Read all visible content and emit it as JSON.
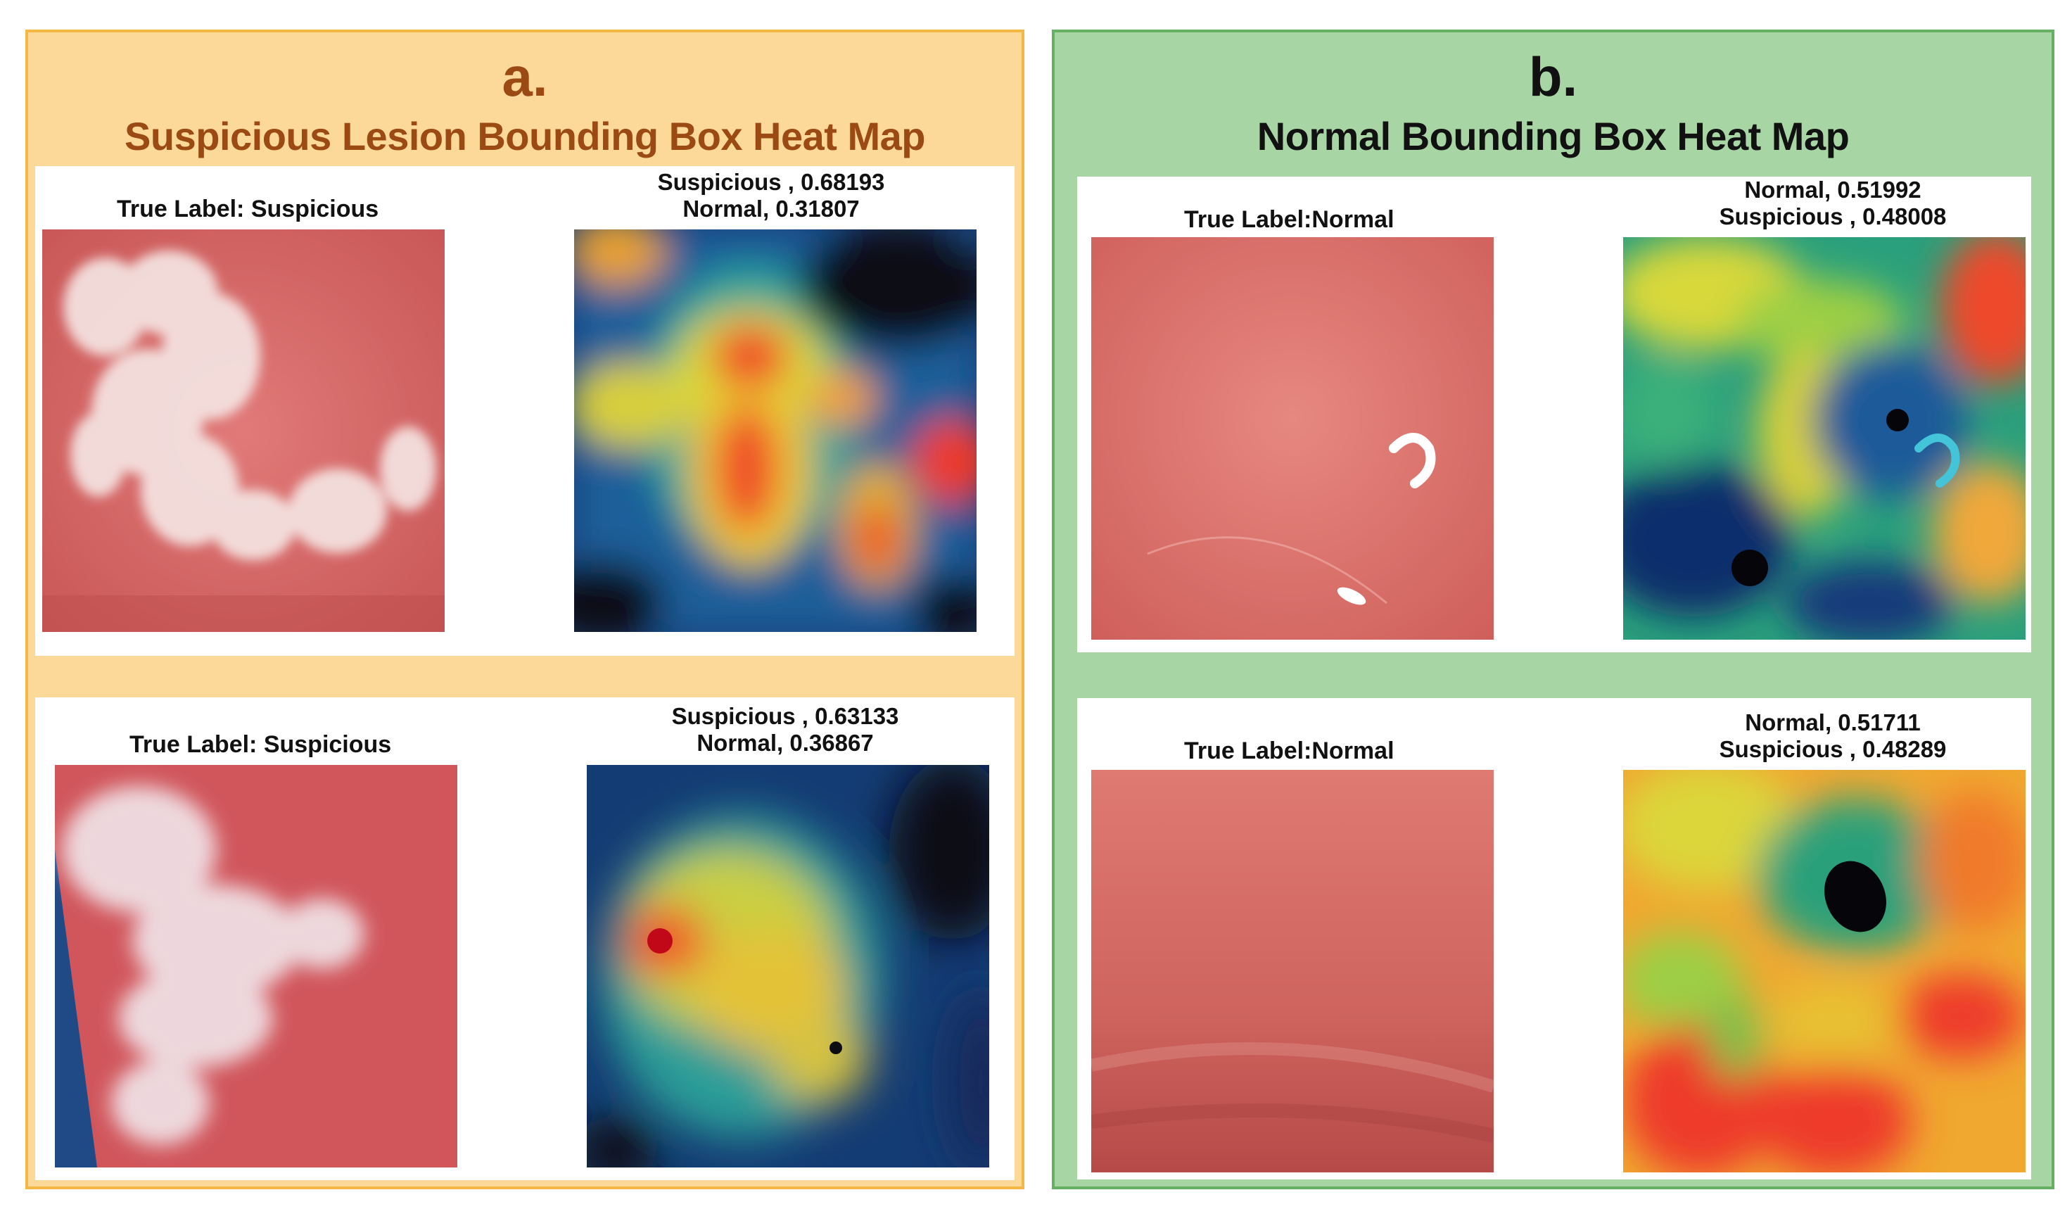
{
  "panel_a": {
    "letter": "a.",
    "title": "Suspicious Lesion Bounding Box Heat Map",
    "rows": [
      {
        "true_label": "True Label:  Suspicious",
        "pred_line1": "Suspicious , 0.68193",
        "pred_line2": "Normal, 0.31807"
      },
      {
        "true_label": "True Label: Suspicious",
        "pred_line1": "Suspicious , 0.63133",
        "pred_line2": "Normal, 0.36867"
      }
    ]
  },
  "panel_b": {
    "letter": "b.",
    "title": "Normal Bounding Box Heat Map",
    "rows": [
      {
        "true_label": "True Label:Normal",
        "pred_line1": "Normal,  0.51992",
        "pred_line2": "Suspicious , 0.48008"
      },
      {
        "true_label": "True Label:Normal",
        "pred_line1": "Normal, 0.51711",
        "pred_line2": "Suspicious , 0.48289"
      }
    ]
  },
  "colors": {
    "panel_a_bg": "#fcd998",
    "panel_a_border": "#f3b843",
    "panel_a_title": "#9a4a12",
    "panel_b_bg": "#a7d6a4",
    "panel_b_border": "#66b064"
  }
}
